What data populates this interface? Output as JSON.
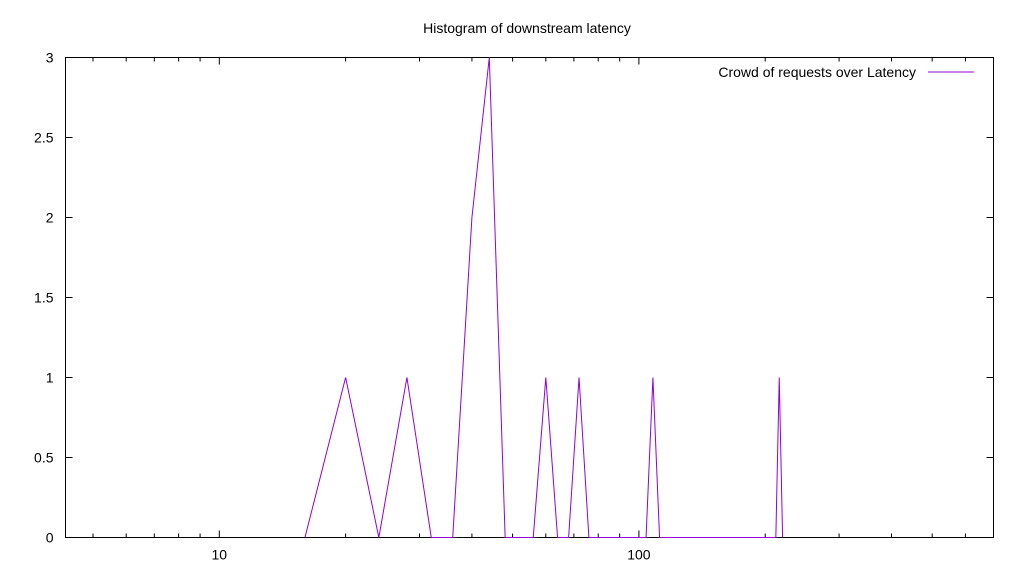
{
  "chart_data": {
    "type": "line",
    "title": "Histogram of downstream latency",
    "xlabel": "",
    "ylabel": "",
    "x_scale": "log",
    "xlim": [
      4.3,
      700
    ],
    "ylim": [
      0,
      3
    ],
    "x_ticks": [
      10,
      100
    ],
    "y_ticks": [
      0,
      0.5,
      1,
      1.5,
      2,
      2.5,
      3
    ],
    "grid": false,
    "legend_position": "top-right",
    "series": [
      {
        "name": "Crowd of requests over Latency",
        "color": "#9400d3",
        "x": [
          16,
          20,
          24,
          28,
          32,
          36,
          40,
          44,
          48,
          56,
          60,
          64,
          68,
          72,
          76,
          104,
          108,
          112,
          212,
          216,
          220
        ],
        "values": [
          0,
          1,
          0,
          1,
          0,
          0,
          2,
          3,
          0,
          0,
          1,
          0,
          0,
          1,
          0,
          0,
          1,
          0,
          0,
          1,
          0
        ]
      }
    ]
  }
}
